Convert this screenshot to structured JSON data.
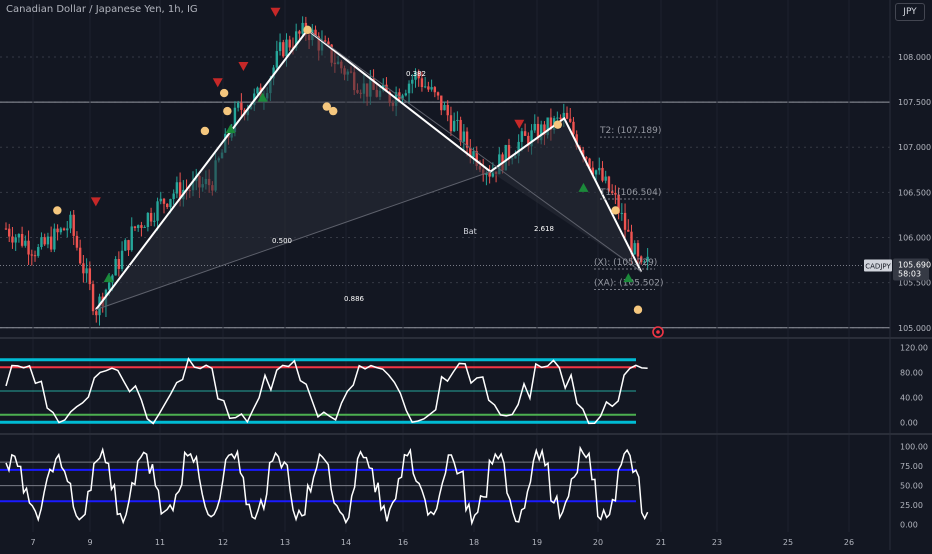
{
  "header": {
    "title": "Canadian Dollar / Japanese Yen, 1h, IG",
    "currency": "JPY"
  },
  "price_tag": {
    "symbol": "CADJPY",
    "price": "105.690",
    "countdown": "58:03"
  },
  "colors": {
    "background": "#131722",
    "bull": "#26a69a",
    "bear": "#ef5350",
    "pattern_line": "#ffffff",
    "pattern_fill": "#2a2e39",
    "dot": "#f5c77e",
    "up_marker": "#1b8a3a",
    "down_marker": "#c62828",
    "osc_red": "#f23645",
    "osc_cyan": "#00bcd4",
    "osc_green": "#4caf50",
    "osc_blue": "#1a1aff"
  },
  "chart_data": [
    {
      "type": "candlestick",
      "series": [
        {
          "name": "CADJPY"
        }
      ],
      "x": [
        "7",
        "9",
        "11",
        "12",
        "13",
        "14",
        "16",
        "18",
        "19",
        "20",
        "21",
        "23",
        "25",
        "26"
      ],
      "ylim": [
        104.92,
        108.52
      ],
      "y_ticks": [
        "108.000",
        "107.500",
        "107.000",
        "106.500",
        "106.000",
        "105.500",
        "105.000"
      ],
      "horizontal_lines": [
        107.5,
        105.0
      ],
      "harmonic_pattern": {
        "name": "Bat",
        "points": [
          {
            "t": 0.14,
            "price": 105.2
          },
          {
            "t": 0.47,
            "price": 108.3
          },
          {
            "t": 0.755,
            "price": 106.73
          },
          {
            "t": 0.87,
            "price": 107.32
          },
          {
            "t": 0.99,
            "price": 105.62
          }
        ],
        "ratio_labels": [
          "0.382",
          "0.500",
          "0.886",
          "2.618"
        ],
        "pattern_label": "Bat",
        "targets": [
          {
            "label": "T2: (107.189)",
            "price": 107.189
          },
          {
            "label": "T1: (106.504)",
            "price": 106.504
          },
          {
            "label": "(X): (105.729)",
            "price": 105.729
          },
          {
            "label": "(XA): (105.502)",
            "price": 105.502
          }
        ]
      }
    },
    {
      "type": "line",
      "ylim": [
        -14,
        130
      ],
      "y_ticks": [
        "120.00",
        "80.00",
        "40.00",
        "0.00"
      ],
      "levels": [
        100,
        88,
        50,
        12,
        0
      ]
    },
    {
      "type": "line",
      "ylim": [
        -8,
        112
      ],
      "y_ticks": [
        "100.00",
        "75.00",
        "50.00",
        "25.00",
        "0.00"
      ],
      "levels": [
        80,
        70,
        50,
        30
      ]
    }
  ]
}
